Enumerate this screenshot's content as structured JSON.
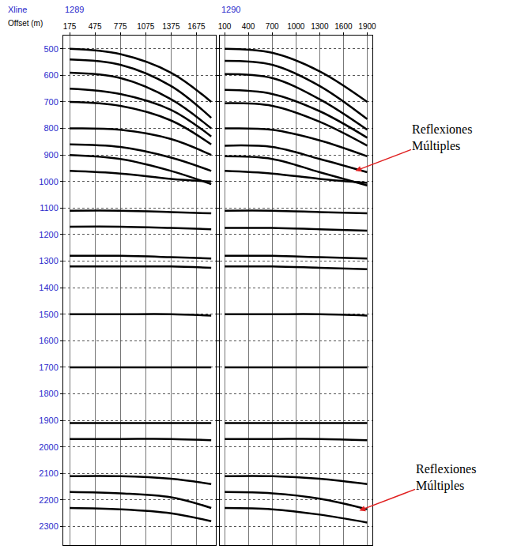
{
  "chart_data": [
    {
      "type": "line",
      "title": "1289",
      "title_label": "Xline",
      "xlabel": "Offset (m)",
      "color": "#000000",
      "x": [
        175,
        775,
        1375,
        1850
      ],
      "xlim": [
        100,
        1900
      ],
      "xticks": [
        175,
        475,
        775,
        1075,
        1375,
        1675
      ],
      "ylim": [
        450,
        2370
      ],
      "yticks": [
        500,
        600,
        700,
        800,
        900,
        1000,
        1100,
        1200,
        1300,
        1400,
        1500,
        1600,
        1700,
        1800,
        1900,
        2000,
        2100,
        2200,
        2300
      ],
      "grid": true,
      "series": [
        {
          "values": [
            500,
            520,
            590,
            700
          ]
        },
        {
          "values": [
            540,
            560,
            640,
            760
          ]
        },
        {
          "values": [
            590,
            610,
            690,
            800
          ]
        },
        {
          "values": [
            650,
            670,
            730,
            830
          ]
        },
        {
          "values": [
            700,
            715,
            770,
            860
          ]
        },
        {
          "values": [
            800,
            805,
            840,
            900
          ]
        },
        {
          "values": [
            860,
            870,
            910,
            960
          ]
        },
        {
          "values": [
            900,
            915,
            960,
            1010
          ]
        },
        {
          "values": [
            960,
            970,
            990,
            1000
          ]
        },
        {
          "values": [
            1110,
            1110,
            1115,
            1120
          ]
        },
        {
          "values": [
            1170,
            1170,
            1175,
            1180
          ]
        },
        {
          "values": [
            1280,
            1280,
            1285,
            1290
          ]
        },
        {
          "values": [
            1320,
            1320,
            1320,
            1325
          ]
        },
        {
          "values": [
            1500,
            1500,
            1500,
            1505
          ]
        },
        {
          "values": [
            1700,
            1700,
            1700,
            1700
          ]
        },
        {
          "values": [
            1910,
            1910,
            1910,
            1910
          ]
        },
        {
          "values": [
            1970,
            1970,
            1970,
            1975
          ]
        },
        {
          "values": [
            2110,
            2110,
            2120,
            2140
          ]
        },
        {
          "values": [
            2170,
            2175,
            2190,
            2230
          ]
        },
        {
          "values": [
            2230,
            2235,
            2250,
            2280
          ]
        }
      ]
    },
    {
      "type": "line",
      "title": "1290",
      "color": "#000000",
      "x": [
        100,
        700,
        1300,
        1900
      ],
      "xlim": [
        40,
        1960
      ],
      "xticks": [
        100,
        400,
        700,
        1000,
        1300,
        1600,
        1900
      ],
      "ylim": [
        450,
        2370
      ],
      "yticks": [
        500,
        600,
        700,
        800,
        900,
        1000,
        1100,
        1200,
        1300,
        1400,
        1500,
        1600,
        1700,
        1800,
        1900,
        2000,
        2100,
        2200,
        2300
      ],
      "grid": true,
      "tick_labels": "x",
      "series": [
        {
          "values": [
            500,
            515,
            585,
            700
          ]
        },
        {
          "values": [
            545,
            560,
            640,
            765
          ]
        },
        {
          "values": [
            595,
            610,
            690,
            805
          ]
        },
        {
          "values": [
            655,
            670,
            735,
            835
          ]
        },
        {
          "values": [
            705,
            715,
            775,
            865
          ]
        },
        {
          "values": [
            800,
            805,
            845,
            905
          ]
        },
        {
          "values": [
            865,
            870,
            915,
            965
          ]
        },
        {
          "values": [
            905,
            915,
            965,
            1015
          ]
        },
        {
          "values": [
            960,
            970,
            990,
            1005
          ]
        },
        {
          "values": [
            1110,
            1110,
            1115,
            1120
          ]
        },
        {
          "values": [
            1175,
            1175,
            1180,
            1185
          ]
        },
        {
          "values": [
            1280,
            1280,
            1285,
            1290
          ]
        },
        {
          "values": [
            1320,
            1320,
            1325,
            1330
          ]
        },
        {
          "values": [
            1500,
            1500,
            1500,
            1505
          ]
        },
        {
          "values": [
            1700,
            1700,
            1700,
            1700
          ]
        },
        {
          "values": [
            1910,
            1910,
            1910,
            1910
          ]
        },
        {
          "values": [
            1970,
            1970,
            1970,
            1975
          ]
        },
        {
          "values": [
            2110,
            2110,
            2120,
            2140
          ]
        },
        {
          "values": [
            2170,
            2175,
            2195,
            2235
          ]
        },
        {
          "values": [
            2230,
            2235,
            2255,
            2285
          ]
        }
      ],
      "annotations": [
        {
          "text": "Reflexiones Múltiples",
          "x": 1750,
          "y": 960
        },
        {
          "text": "Reflexiones Múltiples",
          "x": 1800,
          "y": 2240
        }
      ]
    }
  ]
}
